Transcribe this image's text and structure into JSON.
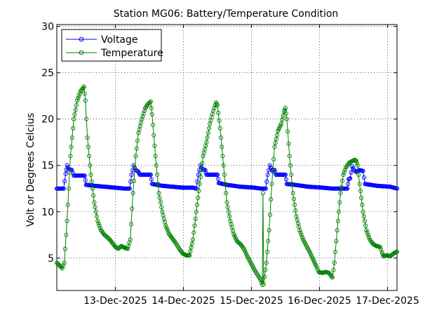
{
  "chart_data": {
    "type": "line",
    "title": "Station MG06: Battery/Temperature Condition",
    "xlabel": "",
    "ylabel": "Volt or Degrees Celcius",
    "xlim": [
      0,
      5.0
    ],
    "ylim": [
      1.5,
      30.2
    ],
    "yticks": [
      5,
      10,
      15,
      20,
      25,
      30
    ],
    "x_ticks": [
      {
        "x": 0.86,
        "label": "13-Dec-2025"
      },
      {
        "x": 1.86,
        "label": "14-Dec-2025"
      },
      {
        "x": 2.86,
        "label": "15-Dec-2025"
      },
      {
        "x": 3.86,
        "label": "16-Dec-2025"
      },
      {
        "x": 4.86,
        "label": "17-Dec-2025"
      }
    ],
    "grid": true,
    "legend_position": "top-left",
    "series": [
      {
        "name": "Voltage",
        "color": "#0000ff",
        "points": [
          [
            0.0,
            12.5
          ],
          [
            0.1,
            12.5
          ],
          [
            0.13,
            14.1
          ],
          [
            0.15,
            15.0
          ],
          [
            0.18,
            14.6
          ],
          [
            0.22,
            14.5
          ],
          [
            0.25,
            13.9
          ],
          [
            0.35,
            13.9
          ],
          [
            0.41,
            13.9
          ],
          [
            0.43,
            12.9
          ],
          [
            0.55,
            12.8
          ],
          [
            0.7,
            12.7
          ],
          [
            0.85,
            12.6
          ],
          [
            1.0,
            12.5
          ],
          [
            1.07,
            12.5
          ],
          [
            1.1,
            14.0
          ],
          [
            1.13,
            15.0
          ],
          [
            1.16,
            14.5
          ],
          [
            1.2,
            14.3
          ],
          [
            1.22,
            14.0
          ],
          [
            1.3,
            14.0
          ],
          [
            1.38,
            14.0
          ],
          [
            1.4,
            13.0
          ],
          [
            1.55,
            12.8
          ],
          [
            1.7,
            12.7
          ],
          [
            1.85,
            12.6
          ],
          [
            2.0,
            12.6
          ],
          [
            2.05,
            12.5
          ],
          [
            2.08,
            14.0
          ],
          [
            2.11,
            15.0
          ],
          [
            2.14,
            14.6
          ],
          [
            2.18,
            14.5
          ],
          [
            2.2,
            14.0
          ],
          [
            2.3,
            14.0
          ],
          [
            2.36,
            14.0
          ],
          [
            2.38,
            13.1
          ],
          [
            2.5,
            12.9
          ],
          [
            2.7,
            12.7
          ],
          [
            2.9,
            12.6
          ],
          [
            3.0,
            12.5
          ],
          [
            3.07,
            12.5
          ],
          [
            3.1,
            14.0
          ],
          [
            3.13,
            15.0
          ],
          [
            3.16,
            14.5
          ],
          [
            3.2,
            14.5
          ],
          [
            3.22,
            14.0
          ],
          [
            3.3,
            14.0
          ],
          [
            3.36,
            14.0
          ],
          [
            3.38,
            13.0
          ],
          [
            3.5,
            12.9
          ],
          [
            3.7,
            12.7
          ],
          [
            3.9,
            12.6
          ],
          [
            4.05,
            12.5
          ],
          [
            4.27,
            12.5
          ],
          [
            4.29,
            13.5
          ],
          [
            4.31,
            13.6
          ],
          [
            4.34,
            14.9
          ],
          [
            4.37,
            14.5
          ],
          [
            4.4,
            14.3
          ],
          [
            4.45,
            14.5
          ],
          [
            4.5,
            14.4
          ],
          [
            4.53,
            13.0
          ],
          [
            4.7,
            12.8
          ],
          [
            4.9,
            12.7
          ],
          [
            5.0,
            12.5
          ]
        ]
      },
      {
        "name": "Temperature",
        "color": "#008000",
        "points": [
          [
            0.0,
            4.5
          ],
          [
            0.04,
            4.2
          ],
          [
            0.08,
            3.9
          ],
          [
            0.11,
            4.5
          ],
          [
            0.15,
            9.0
          ],
          [
            0.2,
            16.0
          ],
          [
            0.25,
            20.0
          ],
          [
            0.3,
            22.0
          ],
          [
            0.35,
            23.0
          ],
          [
            0.4,
            23.5
          ],
          [
            0.42,
            22.0
          ],
          [
            0.45,
            18.0
          ],
          [
            0.5,
            14.0
          ],
          [
            0.55,
            11.0
          ],
          [
            0.6,
            9.0
          ],
          [
            0.65,
            8.0
          ],
          [
            0.7,
            7.5
          ],
          [
            0.75,
            7.2
          ],
          [
            0.8,
            6.8
          ],
          [
            0.85,
            6.3
          ],
          [
            0.9,
            6.0
          ],
          [
            0.95,
            6.3
          ],
          [
            1.0,
            6.1
          ],
          [
            1.04,
            6.0
          ],
          [
            1.08,
            7.0
          ],
          [
            1.12,
            12.0
          ],
          [
            1.16,
            16.0
          ],
          [
            1.2,
            18.5
          ],
          [
            1.25,
            20.0
          ],
          [
            1.3,
            21.2
          ],
          [
            1.35,
            21.7
          ],
          [
            1.38,
            21.9
          ],
          [
            1.4,
            20.5
          ],
          [
            1.45,
            16.0
          ],
          [
            1.5,
            12.0
          ],
          [
            1.55,
            10.0
          ],
          [
            1.6,
            8.5
          ],
          [
            1.65,
            7.6
          ],
          [
            1.7,
            7.1
          ],
          [
            1.75,
            6.6
          ],
          [
            1.8,
            6.0
          ],
          [
            1.85,
            5.5
          ],
          [
            1.9,
            5.3
          ],
          [
            1.95,
            5.3
          ],
          [
            2.0,
            7.0
          ],
          [
            2.05,
            10.0
          ],
          [
            2.1,
            13.0
          ],
          [
            2.15,
            16.0
          ],
          [
            2.2,
            17.5
          ],
          [
            2.25,
            19.5
          ],
          [
            2.3,
            20.9
          ],
          [
            2.34,
            21.8
          ],
          [
            2.36,
            21.5
          ],
          [
            2.4,
            19.0
          ],
          [
            2.45,
            15.0
          ],
          [
            2.5,
            11.0
          ],
          [
            2.55,
            9.0
          ],
          [
            2.6,
            7.6
          ],
          [
            2.65,
            6.8
          ],
          [
            2.7,
            6.5
          ],
          [
            2.75,
            6.0
          ],
          [
            2.8,
            5.2
          ],
          [
            2.85,
            4.5
          ],
          [
            2.9,
            3.8
          ],
          [
            2.95,
            3.2
          ],
          [
            3.0,
            2.6
          ],
          [
            3.02,
            2.1
          ],
          [
            3.03,
            12.0
          ],
          [
            3.04,
            2.2
          ],
          [
            3.08,
            4.5
          ],
          [
            3.12,
            8.0
          ],
          [
            3.16,
            13.0
          ],
          [
            3.2,
            17.0
          ],
          [
            3.25,
            18.7
          ],
          [
            3.3,
            19.5
          ],
          [
            3.34,
            20.8
          ],
          [
            3.36,
            21.2
          ],
          [
            3.38,
            20.0
          ],
          [
            3.42,
            16.0
          ],
          [
            3.47,
            12.0
          ],
          [
            3.52,
            9.5
          ],
          [
            3.57,
            8.0
          ],
          [
            3.62,
            7.0
          ],
          [
            3.67,
            6.3
          ],
          [
            3.72,
            5.6
          ],
          [
            3.77,
            4.8
          ],
          [
            3.82,
            4.0
          ],
          [
            3.85,
            3.5
          ],
          [
            3.9,
            3.4
          ],
          [
            3.95,
            3.5
          ],
          [
            4.0,
            3.4
          ],
          [
            4.03,
            3.1
          ],
          [
            4.05,
            2.9
          ],
          [
            4.08,
            4.5
          ],
          [
            4.12,
            8.0
          ],
          [
            4.17,
            12.0
          ],
          [
            4.21,
            14.0
          ],
          [
            4.25,
            14.8
          ],
          [
            4.3,
            15.3
          ],
          [
            4.35,
            15.5
          ],
          [
            4.38,
            15.6
          ],
          [
            4.4,
            15.5
          ],
          [
            4.42,
            15.0
          ],
          [
            4.45,
            13.0
          ],
          [
            4.5,
            10.0
          ],
          [
            4.55,
            8.0
          ],
          [
            4.6,
            7.0
          ],
          [
            4.65,
            6.5
          ],
          [
            4.7,
            6.3
          ],
          [
            4.75,
            6.2
          ],
          [
            4.78,
            5.6
          ],
          [
            4.8,
            5.2
          ],
          [
            4.85,
            5.3
          ],
          [
            4.9,
            5.2
          ],
          [
            4.95,
            5.5
          ],
          [
            5.0,
            5.7
          ]
        ]
      }
    ]
  }
}
